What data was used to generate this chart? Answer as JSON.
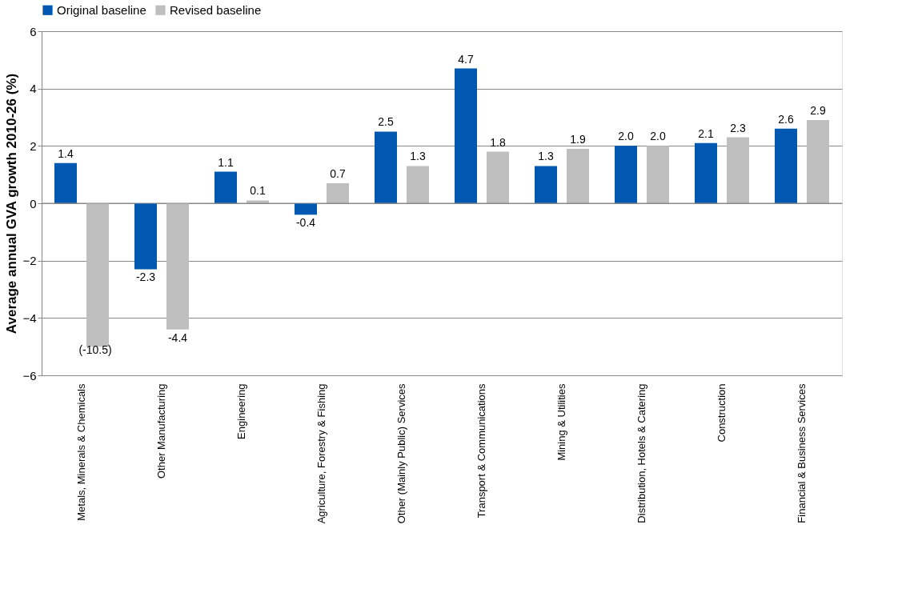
{
  "chart_data": {
    "type": "bar",
    "ylabel": "Average annual GVA growth 2010-26 (%)",
    "categories": [
      "Metals, Minerals & Chemicals",
      "Other Manufacturing",
      "Engineering",
      "Agriculture, Forestry & Fishing",
      "Other (Mainly Public) Services",
      "Transport & Communications",
      "Mining & Utilities",
      "Distribution, Hotels & Catering",
      "Construction",
      "Financial & Business Services"
    ],
    "series": [
      {
        "name": "Original baseline",
        "color": "#0058b0",
        "values": [
          1.4,
          -2.3,
          1.1,
          -0.4,
          2.5,
          4.7,
          1.3,
          2.0,
          2.1,
          2.6
        ],
        "value_labels": [
          "1.4",
          "-2.3",
          "1.1",
          "-0.4",
          "2.5",
          "4.7",
          "1.3",
          "2.0",
          "2.1",
          "2.6"
        ]
      },
      {
        "name": "Revised baseline",
        "color": "#bfbfbf",
        "values": [
          -5.0,
          -4.4,
          0.1,
          0.7,
          1.3,
          1.8,
          1.9,
          2.0,
          2.3,
          2.9
        ],
        "value_labels": [
          null,
          "-4.4",
          "0.1",
          "0.7",
          "1.3",
          "1.8",
          "1.9",
          "2.0",
          "2.3",
          "2.9"
        ]
      }
    ],
    "ylim": [
      -6,
      6
    ],
    "yticks": [
      -6,
      -4,
      -2,
      0,
      2,
      4,
      6
    ],
    "grid": "y",
    "legend": "top",
    "annotations": [
      "(-10.5)"
    ]
  }
}
